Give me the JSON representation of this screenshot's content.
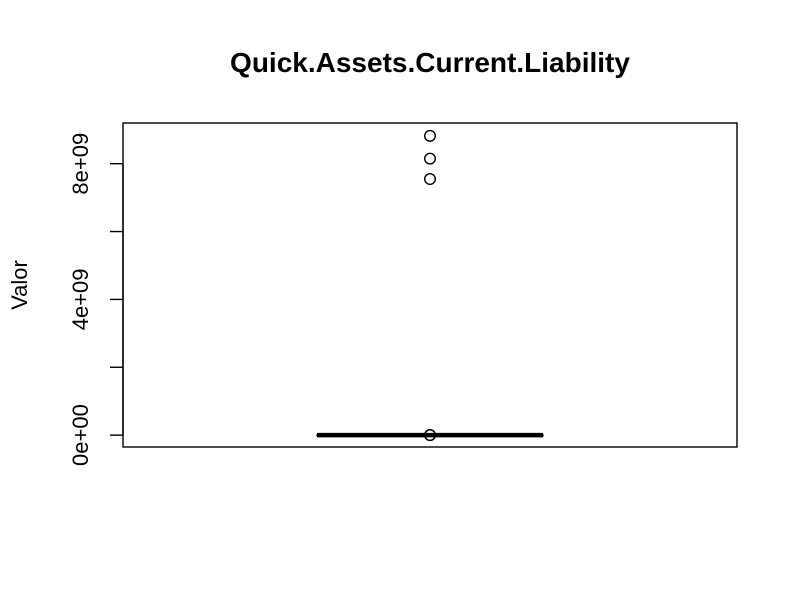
{
  "chart_data": {
    "type": "boxplot",
    "title": "Quick.Assets.Current.Liability",
    "xlabel": "",
    "ylabel": "Valor",
    "ylim": [
      -350000000,
      9200000000
    ],
    "y_ticks": [
      0,
      2000000000,
      4000000000,
      6000000000,
      8000000000
    ],
    "y_tick_labels": [
      "0e+00",
      "",
      "4e+09",
      "",
      "8e+09"
    ],
    "grid": false,
    "legend": "none",
    "box": {
      "min": 0,
      "q1": 0,
      "median": 0,
      "q3": 0,
      "max": 0
    },
    "outliers": [
      8820000000,
      8150000000,
      7550000000,
      5000000,
      1000000
    ]
  }
}
